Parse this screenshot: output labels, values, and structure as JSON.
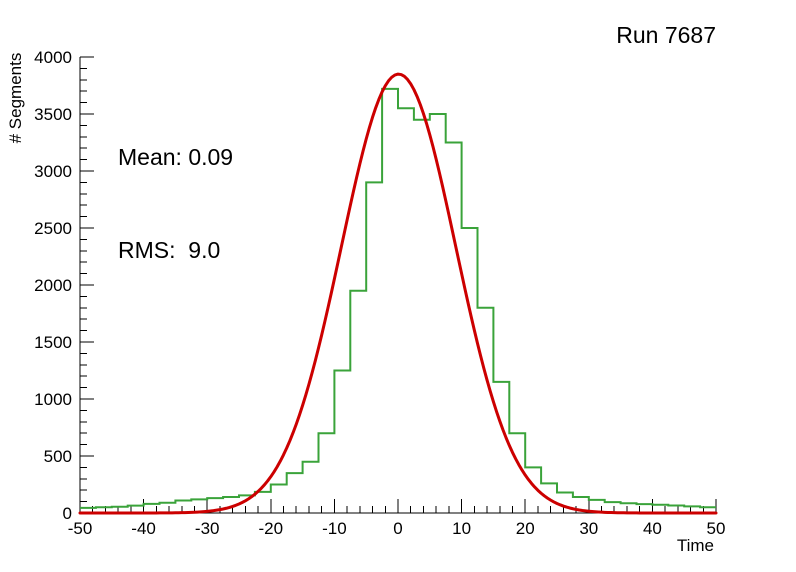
{
  "header": {
    "title": "Run 7687"
  },
  "stats": {
    "lines": [
      "Mean: 0.09",
      "RMS:  9.0"
    ]
  },
  "axes_labels": {
    "x_label": "Time",
    "y_label": "# Segments"
  },
  "colors": {
    "histogram": "#3aa33a",
    "fit": "#cc0000",
    "axis": "#000000",
    "text": "#000000",
    "background": "#ffffff"
  },
  "chart_data": {
    "type": "histogram",
    "title": "Run 7687",
    "xlabel": "Time",
    "ylabel": "# Segments",
    "xlim": [
      -50,
      50
    ],
    "ylim": [
      0,
      4000
    ],
    "grid": false,
    "legend": "none",
    "annotations": [
      "Mean: 0.09",
      "RMS:  9.0"
    ],
    "x_axis": {
      "min": -50,
      "max": 50,
      "major_tick_step": 10,
      "minor_tick_step": 2,
      "tick_values": [
        -50,
        -40,
        -30,
        -20,
        -10,
        0,
        10,
        20,
        30,
        40,
        50
      ],
      "tick_labels": [
        "-50",
        "-40",
        "-30",
        "-20",
        "-10",
        "0",
        "10",
        "20",
        "30",
        "40",
        "50"
      ]
    },
    "y_axis": {
      "min": 0,
      "max": 4000,
      "major_tick_step": 500,
      "minor_tick_step": 100,
      "tick_values": [
        0,
        500,
        1000,
        1500,
        2000,
        2500,
        3000,
        3500,
        4000
      ],
      "tick_labels": [
        "0",
        "500",
        "1000",
        "1500",
        "2000",
        "2500",
        "3000",
        "3500",
        "4000"
      ]
    },
    "bins": {
      "start": -50,
      "width": 2.5,
      "counts": [
        45,
        50,
        55,
        65,
        80,
        90,
        110,
        120,
        130,
        140,
        155,
        185,
        250,
        350,
        450,
        700,
        1250,
        1950,
        2900,
        3720,
        3550,
        3450,
        3500,
        3250,
        2500,
        1800,
        1150,
        700,
        400,
        260,
        180,
        140,
        115,
        95,
        85,
        78,
        72,
        66,
        58,
        50
      ]
    },
    "fit": {
      "shape": "gaussian",
      "amplitude": 3850,
      "mean": 0.09,
      "sigma": 9.0
    }
  }
}
